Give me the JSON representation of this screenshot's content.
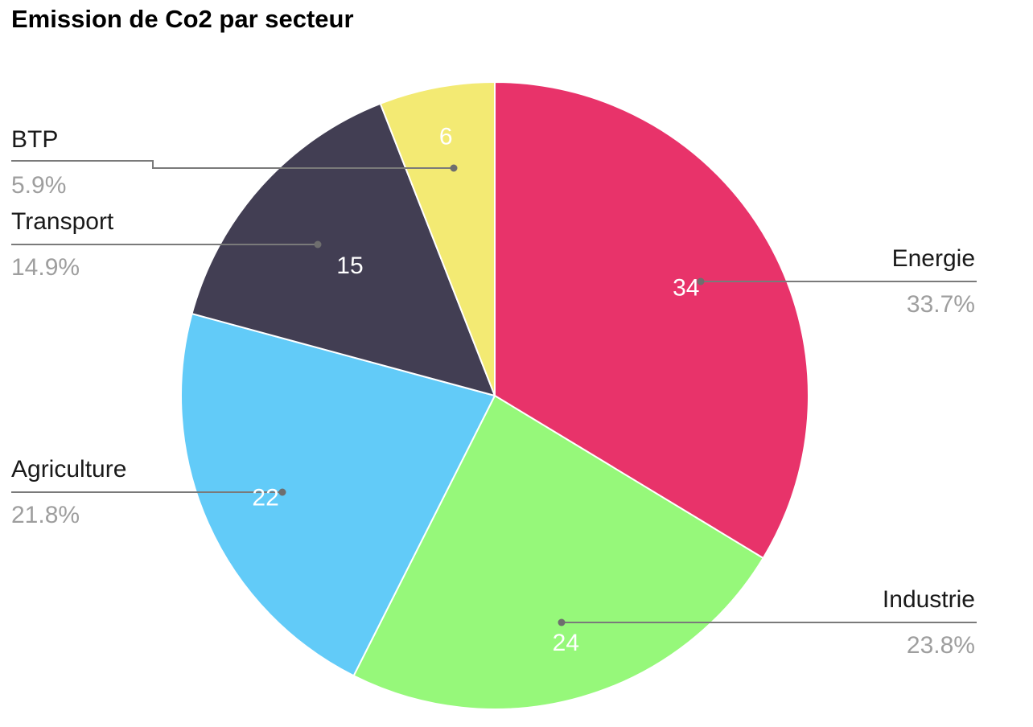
{
  "chart_data": {
    "type": "pie",
    "title": "Emission de Co2 par secteur",
    "slices": [
      {
        "label": "Energie",
        "value": 34,
        "percent": "33.7%",
        "color": "#e8336a"
      },
      {
        "label": "Industrie",
        "value": 24,
        "percent": "23.8%",
        "color": "#96f87a"
      },
      {
        "label": "Agriculture",
        "value": 22,
        "percent": "21.8%",
        "color": "#62cbf8"
      },
      {
        "label": "Transport",
        "value": 15,
        "percent": "14.9%",
        "color": "#423e53"
      },
      {
        "label": "BTP",
        "value": 6,
        "percent": "5.9%",
        "color": "#f3ea73"
      }
    ],
    "legend": "none",
    "start": "top",
    "direction": "clockwise"
  }
}
